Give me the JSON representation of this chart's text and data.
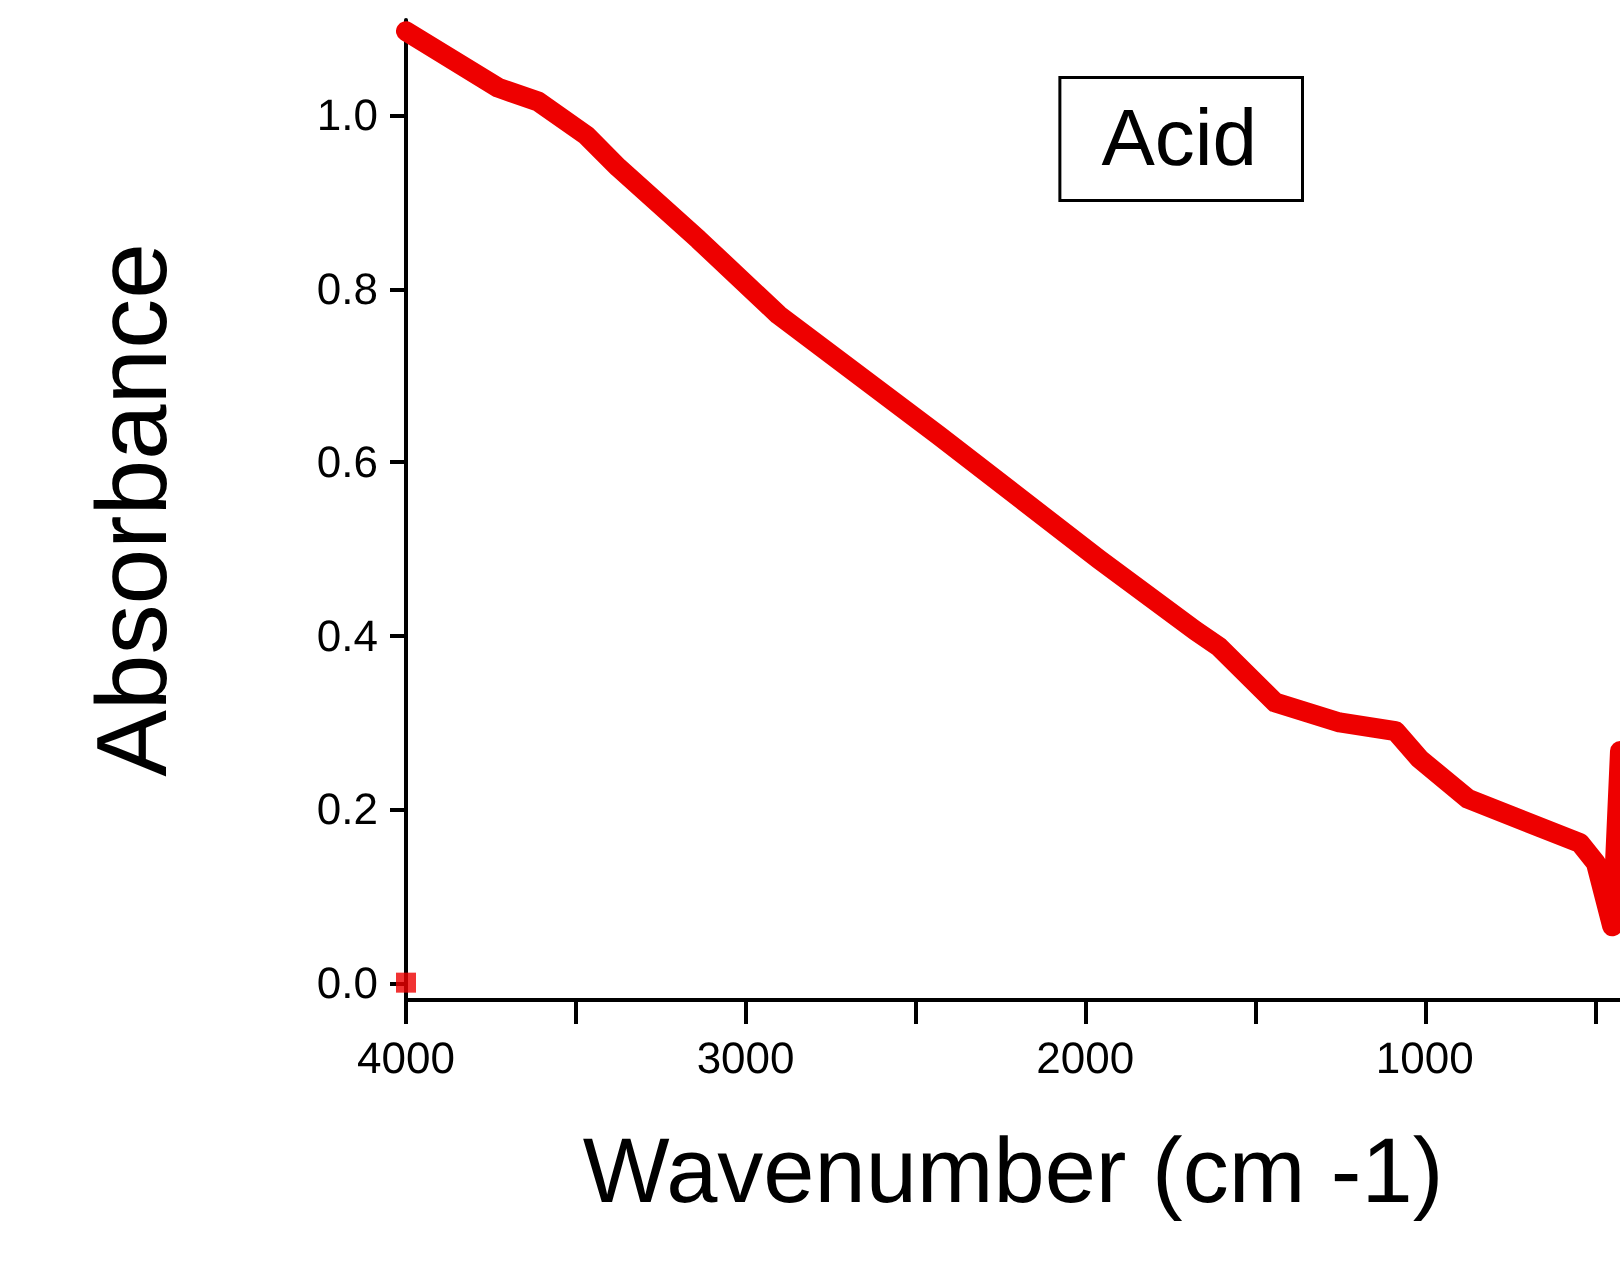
{
  "chart_data": {
    "type": "line",
    "xlabel": "Wavenumber (cm -1)",
    "ylabel": "Absorbance",
    "annotations": [
      "Acid"
    ],
    "xlim": [
      4000,
      425
    ],
    "ylim": [
      -0.02,
      1.11
    ],
    "xticks": [
      4000,
      {
        "value": 3500,
        "label": null
      },
      3000,
      {
        "value": 2500,
        "label": null
      },
      2000,
      {
        "value": 1500,
        "label": null
      },
      1000,
      {
        "value": 500,
        "label": null
      }
    ],
    "yticks": [
      {
        "value": 0,
        "label": "0.0"
      },
      0.2,
      0.4,
      0.6,
      0.8,
      {
        "value": 1,
        "label": "1.0"
      }
    ],
    "grid": false,
    "series": [
      {
        "color": "#ee0000",
        "marker": "none",
        "line_style": "solid",
        "x": [
          4000,
          3729,
          3611,
          3469,
          3375,
          3139,
          2903,
          2431,
          1959,
          1676,
          1605,
          1440,
          1251,
          1086,
          1015,
          873,
          543,
          496,
          448,
          425
        ],
        "values": [
          1.097,
          1.032,
          1.016,
          0.977,
          0.94,
          0.857,
          0.77,
          0.631,
          0.488,
          0.406,
          0.387,
          0.323,
          0.3,
          0.29,
          0.258,
          0.212,
          0.161,
          0.138,
          0.065,
          0.267
        ]
      },
      {
        "type": "scatter",
        "color": "#ee0000",
        "marker": "square",
        "x": [
          4000
        ],
        "values": [
          0
        ]
      }
    ]
  }
}
